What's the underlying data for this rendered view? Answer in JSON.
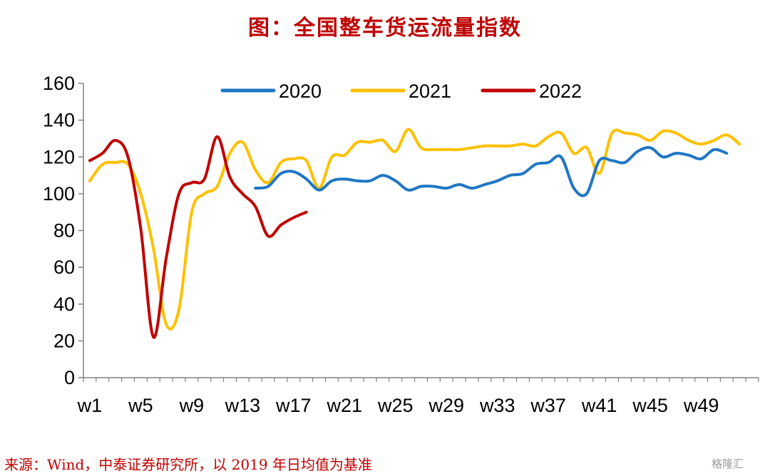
{
  "title": "图：全国整车货运流量指数",
  "source": "来源：Wind，中泰证券研究所，以 2019 年日均值为基准",
  "watermark": "格隆汇",
  "colors": {
    "s2020": "#1f77c4",
    "s2021": "#ffc000",
    "s2022": "#c00000",
    "axis": "#808080",
    "title": "#c00000"
  },
  "chart_data": {
    "type": "line",
    "title": "图：全国整车货运流量指数",
    "xlabel": "",
    "ylabel": "",
    "ylim": [
      0,
      160
    ],
    "yticks": [
      0,
      20,
      40,
      60,
      80,
      100,
      120,
      140,
      160
    ],
    "xlim": [
      1,
      53
    ],
    "xtick_labels": [
      "w1",
      "w5",
      "w9",
      "w13",
      "w17",
      "w21",
      "w25",
      "w29",
      "w33",
      "w37",
      "w41",
      "w45",
      "w49"
    ],
    "xtick_weeks": [
      1,
      5,
      9,
      13,
      17,
      21,
      25,
      29,
      33,
      37,
      41,
      45,
      49
    ],
    "grid": false,
    "legend": "top-center",
    "series": [
      {
        "name": "2020",
        "x": [
          14,
          15,
          16,
          17,
          18,
          19,
          20,
          21,
          22,
          23,
          24,
          25,
          26,
          27,
          28,
          29,
          30,
          31,
          32,
          33,
          34,
          35,
          36,
          37,
          38,
          39,
          40,
          41,
          42,
          43,
          44,
          45,
          46,
          47,
          48,
          49,
          50,
          51,
          52,
          53
        ],
        "values": [
          103,
          104,
          111,
          112,
          108,
          102,
          107,
          108,
          107,
          107,
          110,
          107,
          102,
          104,
          104,
          103,
          105,
          103,
          105,
          107,
          110,
          111,
          116,
          117,
          120,
          103,
          100,
          118,
          118,
          117,
          123,
          125,
          120,
          122,
          121,
          119,
          124,
          122,
          null,
          null
        ]
      },
      {
        "name": "2021",
        "x": [
          1,
          2,
          3,
          4,
          5,
          6,
          7,
          8,
          9,
          10,
          11,
          12,
          13,
          14,
          15,
          16,
          17,
          18,
          19,
          20,
          21,
          22,
          23,
          24,
          25,
          26,
          27,
          28,
          29,
          30,
          31,
          32,
          33,
          34,
          35,
          36,
          37,
          38,
          39,
          40,
          41,
          42,
          43,
          44,
          45,
          46,
          47,
          48,
          49,
          50,
          51,
          52
        ],
        "values": [
          107,
          116,
          117,
          116,
          100,
          70,
          29,
          37,
          90,
          100,
          104,
          122,
          128,
          113,
          106,
          117,
          119,
          118,
          103,
          120,
          121,
          128,
          128,
          129,
          123,
          135,
          125,
          124,
          124,
          124,
          125,
          126,
          126,
          126,
          127,
          126,
          131,
          133,
          122,
          125,
          111,
          133,
          133,
          132,
          129,
          134,
          133,
          129,
          127,
          129,
          132,
          127
        ]
      },
      {
        "name": "2022",
        "x": [
          1,
          2,
          3,
          4,
          5,
          6,
          7,
          8,
          9,
          10,
          11,
          12,
          13,
          14,
          15,
          16,
          17,
          18
        ],
        "values": [
          118,
          122,
          129,
          120,
          81,
          22,
          65,
          100,
          106,
          108,
          131,
          109,
          100,
          93,
          77,
          83,
          87,
          90
        ]
      }
    ]
  }
}
